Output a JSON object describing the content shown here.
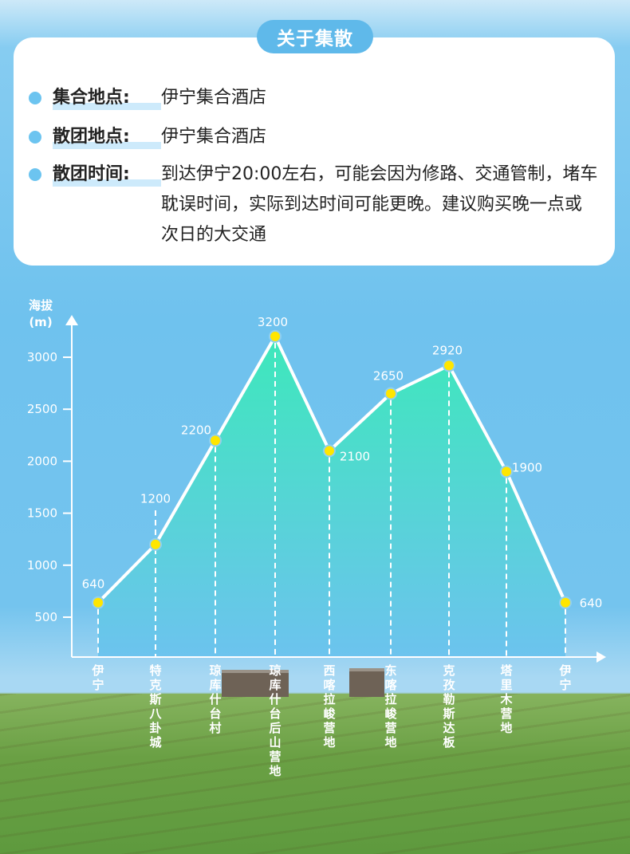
{
  "header": {
    "title": "关于集散"
  },
  "info": [
    {
      "label": "集合地点:",
      "value": "伊宁集合酒店"
    },
    {
      "label": "散团地点:",
      "value": "伊宁集合酒店"
    },
    {
      "label": "散团时间:",
      "value": "到达伊宁20:00左右，可能会因为修路、交通管制，堵车耽误时间，实际到达时间可能更晚。建议购买晚一点或次日的大交通"
    }
  ],
  "chart_data": {
    "type": "area",
    "ylabel": "海拔\n(m)",
    "yticks": [
      500,
      1000,
      1500,
      2000,
      2500,
      3000
    ],
    "ylim": [
      310,
      3400
    ],
    "categories": [
      "伊宁",
      "特克斯八卦城",
      "琼库什台村",
      "琼库什台后山营地",
      "西喀拉峻营地",
      "东喀拉峻营地",
      "克孜勒斯达板",
      "塔里木营地",
      "伊宁"
    ],
    "values": [
      640,
      1200,
      2200,
      3200,
      2100,
      2650,
      2920,
      1900,
      640
    ],
    "colors": {
      "line": "#ffffff",
      "point": "#ffe600",
      "fill_top": "#3de8bb",
      "fill_bottom": "#6cc3ee"
    }
  }
}
